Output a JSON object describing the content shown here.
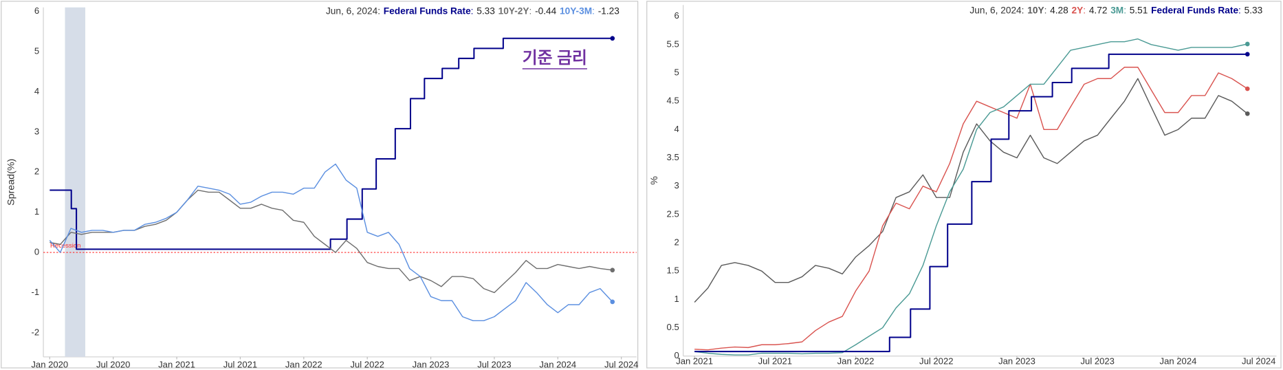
{
  "chart_data": [
    {
      "type": "line",
      "y_label": "Spread(%)",
      "readout_date": "Jun, 6, 2024:",
      "readout_separator": ":",
      "xlim": [
        2019.95,
        2024.62
      ],
      "ylim": [
        -2.6,
        6.1
      ],
      "grid": false,
      "xticks": [
        {
          "value": 2020,
          "label": "Jan 2020"
        },
        {
          "value": 2020.5,
          "label": "Jul 2020"
        },
        {
          "value": 2021,
          "label": "Jan 2021"
        },
        {
          "value": 2021.5,
          "label": "Jul 2021"
        },
        {
          "value": 2022,
          "label": "Jan 2022"
        },
        {
          "value": 2022.5,
          "label": "Jul 2022"
        },
        {
          "value": 2023,
          "label": "Jan 2023"
        },
        {
          "value": 2023.5,
          "label": "Jul 2023"
        },
        {
          "value": 2024,
          "label": "Jan 2024"
        },
        {
          "value": 2024.5,
          "label": "Jul 2024"
        }
      ],
      "yticks": [
        -2,
        -1,
        0,
        1,
        2,
        3,
        4,
        5,
        6
      ],
      "shaded_regions": [
        {
          "x": [
            2020.12,
            2020.28
          ],
          "label": "Recession",
          "color": "#d6dde8"
        }
      ],
      "reference_line": {
        "value": 0,
        "color": "#ff2a2a"
      },
      "annotations": [
        {
          "text": "기준 금리",
          "color": "#7030a0"
        }
      ],
      "x": [
        2020,
        2020.083,
        2020.167,
        2020.25,
        2020.333,
        2020.417,
        2020.5,
        2020.583,
        2020.667,
        2020.75,
        2020.833,
        2020.917,
        2021,
        2021.083,
        2021.167,
        2021.25,
        2021.333,
        2021.417,
        2021.5,
        2021.583,
        2021.667,
        2021.75,
        2021.833,
        2021.917,
        2022,
        2022.083,
        2022.167,
        2022.25,
        2022.333,
        2022.417,
        2022.5,
        2022.583,
        2022.667,
        2022.75,
        2022.833,
        2022.917,
        2023,
        2023.083,
        2023.167,
        2023.25,
        2023.333,
        2023.417,
        2023.5,
        2023.583,
        2023.667,
        2023.75,
        2023.833,
        2023.917,
        2024,
        2024.083,
        2024.167,
        2024.25,
        2024.333,
        2024.43
      ],
      "series": [
        {
          "name": "Federal Funds Rate",
          "color": "#00008b",
          "step": true,
          "x": [
            2020,
            2020.17,
            2020.21,
            2022.21,
            2022.34,
            2022.46,
            2022.57,
            2022.72,
            2022.84,
            2022.95,
            2023.09,
            2023.22,
            2023.34,
            2023.57,
            2024.43
          ],
          "values": [
            1.55,
            1.09,
            0.08,
            0.33,
            0.83,
            1.58,
            2.33,
            3.08,
            3.83,
            4.33,
            4.58,
            4.83,
            5.08,
            5.33,
            5.33
          ]
        },
        {
          "name": "10Y-2Y",
          "color": "#6e6e6e",
          "values": [
            0.25,
            0.2,
            0.5,
            0.45,
            0.5,
            0.5,
            0.5,
            0.55,
            0.55,
            0.65,
            0.7,
            0.8,
            1.0,
            1.3,
            1.55,
            1.5,
            1.5,
            1.3,
            1.1,
            1.1,
            1.2,
            1.1,
            1.05,
            0.8,
            0.75,
            0.4,
            0.2,
            0.0,
            0.3,
            0.1,
            -0.25,
            -0.35,
            -0.4,
            -0.4,
            -0.7,
            -0.6,
            -0.7,
            -0.85,
            -0.6,
            -0.6,
            -0.65,
            -0.9,
            -1.0,
            -0.75,
            -0.5,
            -0.2,
            -0.4,
            -0.4,
            -0.3,
            -0.35,
            -0.4,
            -0.35,
            -0.4,
            -0.44
          ]
        },
        {
          "name": "10Y-3M",
          "color": "#5b8fe0",
          "values": [
            0.3,
            0.0,
            0.6,
            0.5,
            0.55,
            0.55,
            0.5,
            0.55,
            0.55,
            0.7,
            0.75,
            0.85,
            1.0,
            1.3,
            1.65,
            1.6,
            1.55,
            1.45,
            1.2,
            1.25,
            1.4,
            1.5,
            1.5,
            1.45,
            1.6,
            1.6,
            2.0,
            2.2,
            1.8,
            1.6,
            0.5,
            0.4,
            0.5,
            0.2,
            -0.4,
            -0.6,
            -1.1,
            -1.2,
            -1.2,
            -1.6,
            -1.7,
            -1.7,
            -1.6,
            -1.4,
            -1.2,
            -0.75,
            -1.0,
            -1.3,
            -1.5,
            -1.3,
            -1.3,
            -1.0,
            -0.9,
            -1.23
          ]
        }
      ]
    },
    {
      "type": "line",
      "y_label": "%",
      "readout_date": "Jun, 6, 2024:",
      "readout_separator": ":",
      "xlim": [
        2020.93,
        2024.61
      ],
      "ylim": [
        0,
        6.2
      ],
      "grid": false,
      "xticks": [
        {
          "value": 2021,
          "label": "Jan 2021"
        },
        {
          "value": 2021.5,
          "label": "Jul 2021"
        },
        {
          "value": 2022,
          "label": "Jan 2022"
        },
        {
          "value": 2022.5,
          "label": "Jul 2022"
        },
        {
          "value": 2023,
          "label": "Jan 2023"
        },
        {
          "value": 2023.5,
          "label": "Jul 2023"
        },
        {
          "value": 2024,
          "label": "Jan 2024"
        },
        {
          "value": 2024.5,
          "label": "Jul 2024"
        }
      ],
      "yticks": [
        0,
        0.5,
        1,
        1.5,
        2,
        2.5,
        3,
        3.5,
        4,
        4.5,
        5,
        5.5,
        6
      ],
      "x": [
        2021,
        2021.083,
        2021.167,
        2021.25,
        2021.333,
        2021.417,
        2021.5,
        2021.583,
        2021.667,
        2021.75,
        2021.833,
        2021.917,
        2022,
        2022.083,
        2022.167,
        2022.25,
        2022.333,
        2022.417,
        2022.5,
        2022.583,
        2022.667,
        2022.75,
        2022.833,
        2022.917,
        2023,
        2023.083,
        2023.167,
        2023.25,
        2023.333,
        2023.417,
        2023.5,
        2023.583,
        2023.667,
        2023.75,
        2023.833,
        2023.917,
        2024,
        2024.083,
        2024.167,
        2024.25,
        2024.333,
        2024.43
      ],
      "series": [
        {
          "name": "10Y",
          "color": "#5a5a5a",
          "values": [
            0.95,
            1.2,
            1.6,
            1.65,
            1.6,
            1.5,
            1.3,
            1.3,
            1.4,
            1.6,
            1.55,
            1.45,
            1.75,
            1.95,
            2.2,
            2.8,
            2.9,
            3.2,
            2.8,
            2.8,
            3.6,
            4.1,
            3.8,
            3.6,
            3.5,
            3.9,
            3.5,
            3.4,
            3.6,
            3.8,
            3.9,
            4.2,
            4.5,
            4.9,
            4.4,
            3.9,
            4.0,
            4.2,
            4.2,
            4.6,
            4.5,
            4.28
          ]
        },
        {
          "name": "2Y",
          "color": "#d9534f",
          "values": [
            0.12,
            0.11,
            0.14,
            0.16,
            0.15,
            0.2,
            0.2,
            0.22,
            0.25,
            0.45,
            0.6,
            0.7,
            1.15,
            1.5,
            2.3,
            2.7,
            2.6,
            3.0,
            2.9,
            3.4,
            4.1,
            4.5,
            4.4,
            4.3,
            4.2,
            4.8,
            4.0,
            4.0,
            4.4,
            4.8,
            4.9,
            4.9,
            5.1,
            5.1,
            4.7,
            4.3,
            4.3,
            4.6,
            4.6,
            5.0,
            4.9,
            4.72
          ]
        },
        {
          "name": "3M",
          "color": "#4a9a94",
          "values": [
            0.08,
            0.05,
            0.03,
            0.02,
            0.02,
            0.05,
            0.05,
            0.05,
            0.04,
            0.05,
            0.05,
            0.06,
            0.2,
            0.35,
            0.5,
            0.85,
            1.1,
            1.6,
            2.3,
            2.9,
            3.3,
            4.0,
            4.3,
            4.4,
            4.6,
            4.8,
            4.8,
            5.1,
            5.4,
            5.45,
            5.5,
            5.55,
            5.55,
            5.6,
            5.5,
            5.45,
            5.4,
            5.45,
            5.45,
            5.45,
            5.45,
            5.51
          ]
        },
        {
          "name": "Federal Funds Rate",
          "color": "#00008b",
          "step": true,
          "x": [
            2021,
            2022.21,
            2022.34,
            2022.46,
            2022.57,
            2022.72,
            2022.84,
            2022.95,
            2023.09,
            2023.22,
            2023.34,
            2023.57,
            2024.43
          ],
          "values": [
            0.08,
            0.33,
            0.83,
            1.58,
            2.33,
            3.08,
            3.83,
            4.33,
            4.58,
            4.83,
            5.08,
            5.33,
            5.33
          ]
        }
      ]
    }
  ]
}
